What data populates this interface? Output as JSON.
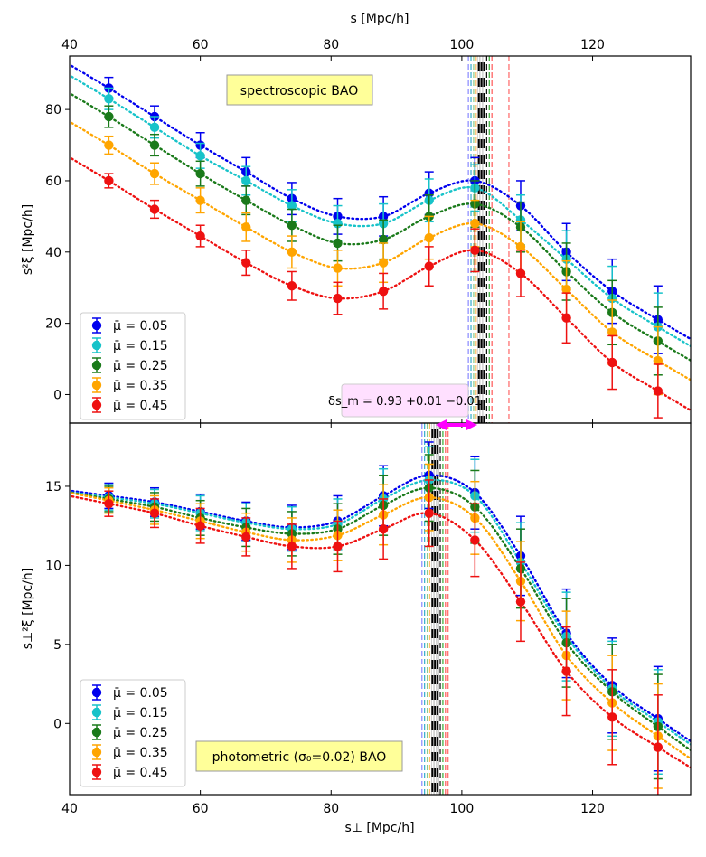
{
  "colors": {
    "mu_0.05": "#0000ee",
    "mu_0.15": "#17c3c9",
    "mu_0.25": "#1a7a1a",
    "mu_0.35": "#ffa500",
    "mu_0.45": "#ee1111",
    "box_fill": "#ffff99",
    "annotation_fill": "#ffe0ff",
    "arrow": "#ff00ff"
  },
  "chart_data": [
    {
      "type": "scatter",
      "panel": "top",
      "top_axis_label": "s [Mpc/h]",
      "ylabel": "s²ξ [Mpc/h]",
      "xlim": [
        40,
        135
      ],
      "ylim": [
        -8,
        95
      ],
      "x_ticks": [
        "40",
        "60",
        "80",
        "100",
        "120"
      ],
      "y_ticks": [
        "0",
        "20",
        "40",
        "60",
        "80"
      ],
      "box_label": "spectroscopic BAO",
      "annotation": "δs_m = 0.93 +0.01 −0.01",
      "legend_position": "lower-left",
      "x": [
        46,
        53,
        60,
        67,
        74,
        81,
        88,
        95,
        102,
        109,
        116,
        123,
        130
      ],
      "series": [
        {
          "name": "μ̄ = 0.05",
          "values": [
            86,
            78,
            70,
            62.5,
            55,
            50,
            50,
            56.5,
            60,
            53,
            40,
            29,
            21
          ],
          "errors": [
            3,
            3,
            3.5,
            4,
            4.5,
            5,
            5.5,
            6,
            6.5,
            7,
            8,
            9,
            9.5
          ]
        },
        {
          "name": "μ̄ = 0.15",
          "values": [
            83,
            75,
            67,
            60,
            53,
            48,
            48,
            54.5,
            58,
            49,
            38,
            27,
            19
          ],
          "errors": [
            3,
            3,
            3.5,
            4,
            4.5,
            5,
            5.5,
            6,
            6.5,
            7,
            8,
            9,
            9.5
          ]
        },
        {
          "name": "μ̄ = 0.25",
          "values": [
            78,
            70,
            62,
            54.5,
            47.5,
            42.5,
            43.5,
            50,
            53.5,
            47,
            34.5,
            23,
            15
          ],
          "errors": [
            3,
            3,
            3.5,
            4,
            4.5,
            5,
            5.5,
            6,
            6.5,
            7,
            8,
            9,
            9.5
          ]
        },
        {
          "name": "μ̄ = 0.35",
          "values": [
            70,
            62,
            54.5,
            47,
            40,
            35.5,
            37,
            44,
            48,
            41.5,
            29.5,
            17.5,
            9.5
          ],
          "errors": [
            2.5,
            3,
            3.5,
            4,
            4.5,
            5,
            5.5,
            6,
            6.5,
            7,
            8,
            9,
            9.5
          ]
        },
        {
          "name": "μ̄ = 0.45",
          "values": [
            60,
            52,
            44.5,
            37,
            30.5,
            27,
            29,
            36,
            40.5,
            34,
            21.5,
            9,
            1
          ],
          "errors": [
            2,
            2.5,
            3,
            3.5,
            4,
            4.5,
            5,
            5.5,
            6,
            6.5,
            7,
            7.5,
            7.5
          ]
        }
      ],
      "model_curves": "dotted",
      "vertical_lines_x": [
        101,
        101.4,
        101.8,
        102.2,
        102.6,
        103,
        103.4,
        103.8,
        104.2,
        104.6,
        107.2
      ]
    },
    {
      "type": "scatter",
      "panel": "bottom",
      "xlabel": "s⊥ [Mpc/h]",
      "ylabel": "s⊥²ξ [Mpc/h]",
      "xlim": [
        40,
        135
      ],
      "ylim": [
        -4.5,
        19
      ],
      "x_ticks": [
        "40",
        "60",
        "80",
        "100",
        "120"
      ],
      "y_ticks": [
        "0",
        "5",
        "10",
        "15"
      ],
      "box_label": "photometric (σ₀=0.02) BAO",
      "legend_position": "lower-left",
      "x": [
        46,
        53,
        60,
        67,
        74,
        81,
        88,
        95,
        102,
        109,
        116,
        123,
        130
      ],
      "series": [
        {
          "name": "μ̄ = 0.05",
          "values": [
            14.4,
            14,
            13.4,
            12.8,
            12.4,
            12.8,
            14.4,
            15.7,
            14.6,
            10.6,
            5.7,
            2.4,
            0.3
          ],
          "errors": [
            0.8,
            0.9,
            1.1,
            1.2,
            1.4,
            1.6,
            1.9,
            2.1,
            2.3,
            2.5,
            2.8,
            3,
            3.3
          ]
        },
        {
          "name": "μ̄ = 0.15",
          "values": [
            14.3,
            13.9,
            13.3,
            12.7,
            12.3,
            12.6,
            14.2,
            15.4,
            14.4,
            10.2,
            5.5,
            2.2,
            0.1
          ],
          "errors": [
            0.8,
            0.9,
            1.1,
            1.2,
            1.4,
            1.6,
            1.9,
            2.1,
            2.3,
            2.5,
            2.8,
            3,
            3.3
          ]
        },
        {
          "name": "μ̄ = 0.25",
          "values": [
            14.2,
            13.7,
            13,
            12.4,
            12,
            12.3,
            13.8,
            14.9,
            13.7,
            9.8,
            5.1,
            2,
            -0.2
          ],
          "errors": [
            0.8,
            0.9,
            1.1,
            1.2,
            1.4,
            1.6,
            1.9,
            2.1,
            2.3,
            2.5,
            2.8,
            3,
            3.3
          ]
        },
        {
          "name": "μ̄ = 0.35",
          "values": [
            14.1,
            13.5,
            12.8,
            12.1,
            11.6,
            11.9,
            13.2,
            14.3,
            13,
            9,
            4.3,
            1.3,
            -0.8
          ],
          "errors": [
            0.8,
            0.9,
            1.1,
            1.2,
            1.4,
            1.6,
            1.9,
            2.1,
            2.3,
            2.5,
            2.8,
            3,
            3.3
          ]
        },
        {
          "name": "μ̄ = 0.45",
          "values": [
            13.9,
            13.3,
            12.5,
            11.8,
            11.2,
            11.2,
            12.3,
            13.3,
            11.6,
            7.7,
            3.3,
            0.4,
            -1.5
          ],
          "errors": [
            0.8,
            0.9,
            1.1,
            1.2,
            1.4,
            1.6,
            1.9,
            2.1,
            2.3,
            2.5,
            2.8,
            3,
            3.3
          ]
        }
      ],
      "model_curves": "dotted",
      "vertical_lines_x": [
        93.9,
        94.3,
        94.7,
        95.1,
        95.5,
        95.9,
        96.3,
        96.7,
        97.1,
        97.5,
        97.9
      ]
    }
  ]
}
